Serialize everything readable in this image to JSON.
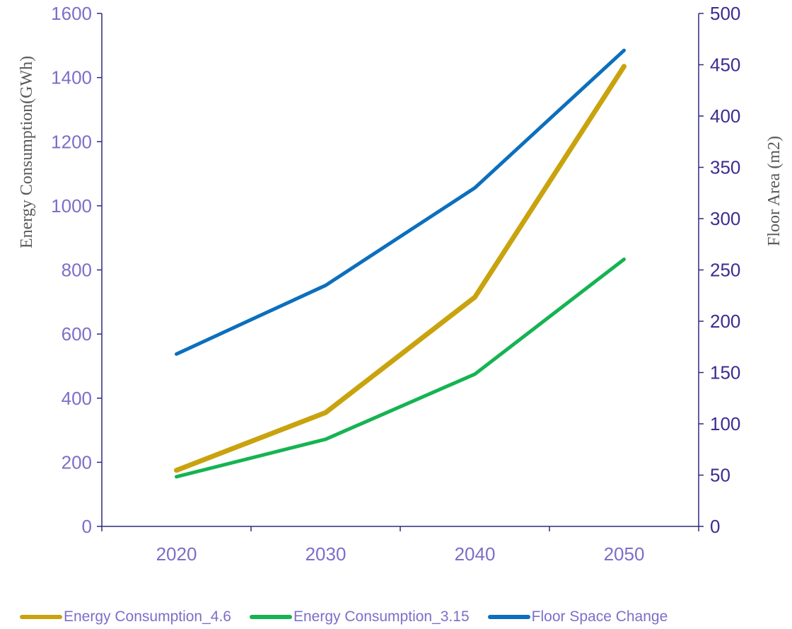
{
  "chart_data": {
    "type": "line",
    "categories": [
      "2020",
      "2030",
      "2040",
      "2050"
    ],
    "left_axis": {
      "label": "Energy Consumption(GWh)",
      "ylim": [
        0,
        1600
      ],
      "ticks": [
        "0",
        "200",
        "400",
        "600",
        "800",
        "1000",
        "1200",
        "1400",
        "1600"
      ]
    },
    "right_axis": {
      "label": "Floor Area (m2)",
      "ylim": [
        0,
        500
      ],
      "ticks": [
        "0",
        "50",
        "100",
        "150",
        "200",
        "250",
        "300",
        "350",
        "400",
        "450",
        "500"
      ]
    },
    "series": [
      {
        "name": "Energy Consumption_4.6",
        "axis": "left",
        "color": "#c9a30e",
        "values": [
          175,
          355,
          715,
          1435
        ]
      },
      {
        "name": "Energy Consumption_3.15",
        "axis": "left",
        "color": "#16b352",
        "values": [
          155,
          272,
          475,
          833
        ]
      },
      {
        "name": "Floor Space Change",
        "axis": "right",
        "color": "#0c6fbd",
        "values": [
          168,
          235,
          330,
          464
        ]
      }
    ],
    "grid": false,
    "legend_position": "bottom"
  }
}
